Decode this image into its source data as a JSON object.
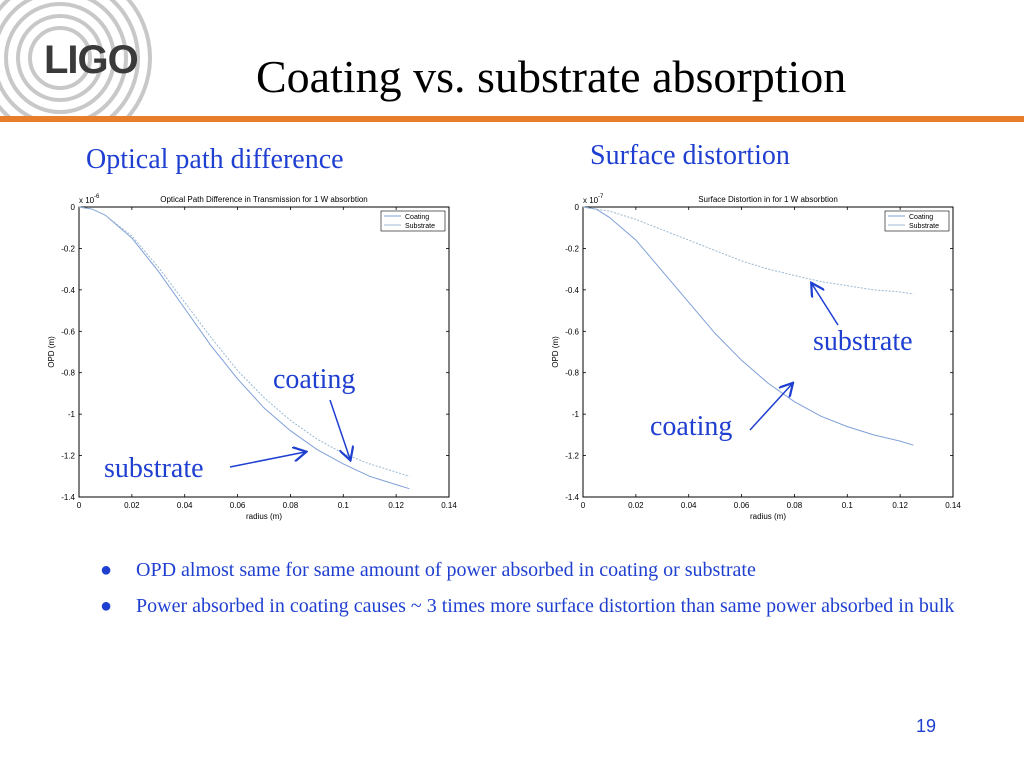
{
  "slide": {
    "logo": "LIGO",
    "title": "Coating vs. substrate absorption",
    "accent_color": "#e87d2a",
    "text_color": "#1f3fd1",
    "page_number": "19"
  },
  "sections": {
    "left_label": "Optical path difference",
    "right_label": "Surface distortion"
  },
  "annotations": {
    "left_coating": "coating",
    "left_substrate": "substrate",
    "right_substrate": "substrate",
    "right_coating": "coating"
  },
  "bullets": [
    "OPD almost same for same amount of power absorbed in coating or substrate",
    "Power absorbed in coating causes ~ 3 times more surface distortion than same power absorbed in bulk"
  ],
  "chart_data": [
    {
      "type": "line",
      "title": "Optical Path Difference in Transmission for 1 W absorbtion",
      "xlabel": "radius (m)",
      "ylabel": "OPD (m)",
      "y_multiplier": "x 10",
      "y_exponent": "-6",
      "xlim": [
        0,
        0.14
      ],
      "ylim": [
        -1.4,
        0
      ],
      "xticks": [
        0,
        0.02,
        0.04,
        0.06,
        0.08,
        0.1,
        0.12,
        0.14
      ],
      "yticks": [
        0,
        -0.2,
        -0.4,
        -0.6,
        -0.8,
        -1,
        -1.2,
        -1.4
      ],
      "xtick_labels": [
        "0",
        "0.02",
        "0.04",
        "0.06",
        "0.08",
        "0.1",
        "0.12",
        "0.14"
      ],
      "ytick_labels": [
        "0",
        "-0.2",
        "-0.4",
        "-0.6",
        "-0.8",
        "-1",
        "-1.2",
        "-1.4"
      ],
      "legend": "top-right",
      "grid": false,
      "series": [
        {
          "name": "Coating",
          "x": [
            0,
            0.005,
            0.01,
            0.02,
            0.03,
            0.04,
            0.05,
            0.06,
            0.07,
            0.08,
            0.09,
            0.1,
            0.11,
            0.12,
            0.125
          ],
          "y": [
            0,
            -0.01,
            -0.04,
            -0.15,
            -0.31,
            -0.49,
            -0.67,
            -0.83,
            -0.97,
            -1.08,
            -1.17,
            -1.24,
            -1.3,
            -1.34,
            -1.36
          ]
        },
        {
          "name": "Substrate",
          "x": [
            0,
            0.005,
            0.01,
            0.02,
            0.03,
            0.04,
            0.05,
            0.06,
            0.07,
            0.08,
            0.09,
            0.1,
            0.11,
            0.12,
            0.125
          ],
          "y": [
            0,
            -0.01,
            -0.04,
            -0.14,
            -0.29,
            -0.46,
            -0.63,
            -0.79,
            -0.92,
            -1.03,
            -1.12,
            -1.19,
            -1.24,
            -1.28,
            -1.3
          ]
        }
      ]
    },
    {
      "type": "line",
      "title": "Surface Distortion in for 1 W absorbtion",
      "xlabel": "radius (m)",
      "ylabel": "OPD (m)",
      "y_multiplier": "x 10",
      "y_exponent": "-7",
      "xlim": [
        0,
        0.14
      ],
      "ylim": [
        -1.4,
        0
      ],
      "xticks": [
        0,
        0.02,
        0.04,
        0.06,
        0.08,
        0.1,
        0.12,
        0.14
      ],
      "yticks": [
        0,
        -0.2,
        -0.4,
        -0.6,
        -0.8,
        -1,
        -1.2,
        -1.4
      ],
      "xtick_labels": [
        "0",
        "0.02",
        "0.04",
        "0.06",
        "0.08",
        "0.1",
        "0.12",
        "0.14"
      ],
      "ytick_labels": [
        "0",
        "-0.2",
        "-0.4",
        "-0.6",
        "-0.8",
        "-1",
        "-1.2",
        "-1.4"
      ],
      "legend": "top-right",
      "grid": false,
      "series": [
        {
          "name": "Coating",
          "x": [
            0,
            0.005,
            0.01,
            0.02,
            0.03,
            0.04,
            0.05,
            0.06,
            0.07,
            0.08,
            0.09,
            0.1,
            0.11,
            0.12,
            0.125
          ],
          "y": [
            0,
            -0.01,
            -0.05,
            -0.16,
            -0.31,
            -0.46,
            -0.61,
            -0.74,
            -0.85,
            -0.94,
            -1.01,
            -1.06,
            -1.1,
            -1.13,
            -1.15
          ]
        },
        {
          "name": "Substrate",
          "x": [
            0,
            0.005,
            0.01,
            0.02,
            0.03,
            0.04,
            0.05,
            0.06,
            0.07,
            0.08,
            0.09,
            0.1,
            0.11,
            0.12,
            0.125
          ],
          "y": [
            0,
            -0.01,
            -0.02,
            -0.06,
            -0.11,
            -0.16,
            -0.21,
            -0.26,
            -0.3,
            -0.33,
            -0.36,
            -0.38,
            -0.4,
            -0.41,
            -0.42
          ]
        }
      ]
    }
  ]
}
